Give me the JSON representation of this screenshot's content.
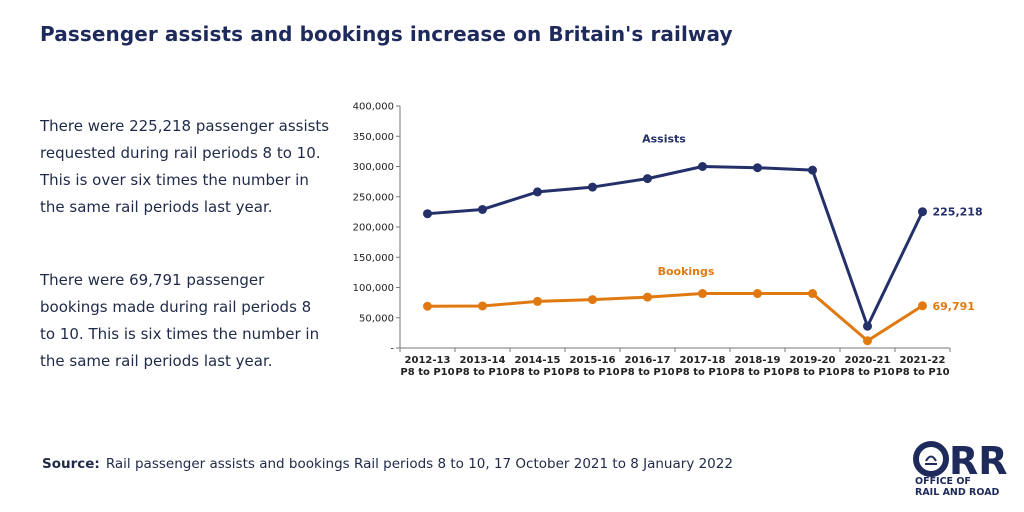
{
  "title": "Passenger assists and bookings increase on Britain's railway",
  "paragraphs": [
    "There were 225,218 passenger assists requested during rail periods 8 to 10. This is over six times the number in the same rail periods last year.",
    "There were 69,791 passenger bookings made during rail periods 8 to 10. This is six times the number in the same rail periods last year."
  ],
  "source": {
    "label": "Source:",
    "text": "Rail passenger assists and bookings Rail periods 8 to 10, 17 October 2021 to 8 January 2022"
  },
  "logo": {
    "mark": "ORR",
    "line1": "OFFICE OF",
    "line2": "RAIL AND ROAD"
  },
  "colors": {
    "assists": "#24306a",
    "bookings": "#e07a10",
    "title": "#1f2a5c"
  },
  "chart_data": {
    "type": "line",
    "categories": [
      [
        "2012-13",
        "P8 to P10"
      ],
      [
        "2013-14",
        "P8 to P10"
      ],
      [
        "2014-15",
        "P8 to P10"
      ],
      [
        "2015-16",
        "P8 to P10"
      ],
      [
        "2016-17",
        "P8 to P10"
      ],
      [
        "2017-18",
        "P8 to P10"
      ],
      [
        "2018-19",
        "P8 to P10"
      ],
      [
        "2019-20",
        "P8 to P10"
      ],
      [
        "2020-21",
        "P8 to P10"
      ],
      [
        "2021-22",
        "P8 to P10"
      ]
    ],
    "ylim": [
      0,
      400000
    ],
    "yticks": [
      "-",
      "50,000",
      "100,000",
      "150,000",
      "200,000",
      "250,000",
      "300,000",
      "350,000",
      "400,000"
    ],
    "grid": false,
    "series": [
      {
        "name": "Assists",
        "values": [
          222000,
          229000,
          258000,
          266000,
          280000,
          300000,
          298000,
          294000,
          36000,
          225218
        ],
        "end_label": "225,218"
      },
      {
        "name": "Bookings",
        "values": [
          69000,
          69500,
          77000,
          80000,
          84000,
          90000,
          90000,
          90000,
          12000,
          69791
        ],
        "end_label": "69,791"
      }
    ]
  }
}
